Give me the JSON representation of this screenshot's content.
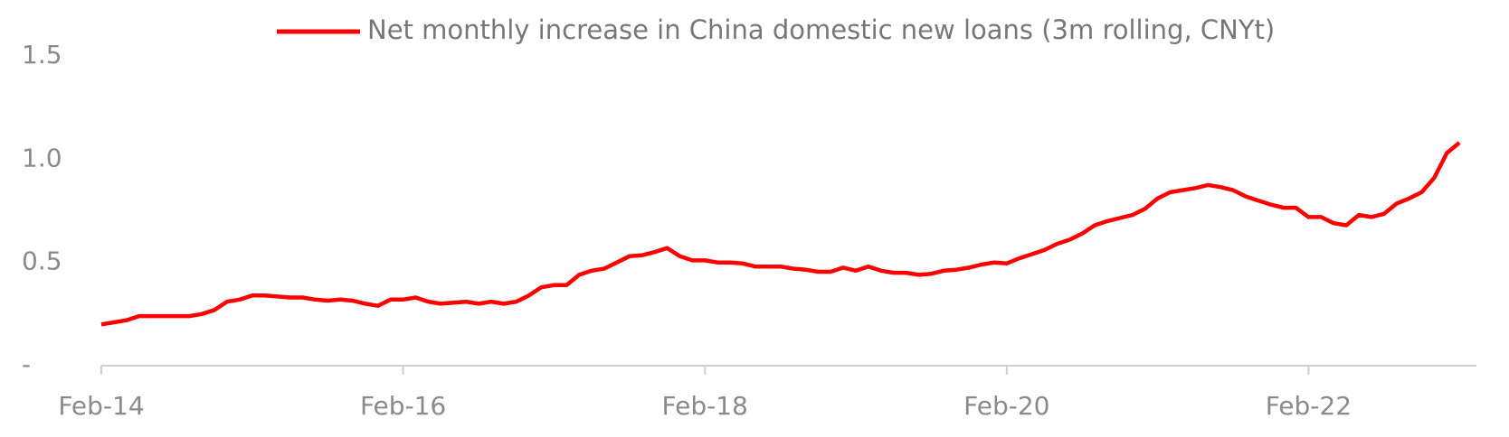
{
  "chart_data": {
    "type": "line",
    "categories": [
      "Feb-14",
      null,
      null,
      null,
      null,
      null,
      null,
      null,
      null,
      null,
      null,
      null,
      null,
      null,
      null,
      null,
      null,
      null,
      null,
      null,
      null,
      null,
      null,
      null,
      "Feb-16",
      null,
      null,
      null,
      null,
      null,
      null,
      null,
      null,
      null,
      null,
      null,
      null,
      null,
      null,
      null,
      null,
      null,
      null,
      null,
      null,
      null,
      null,
      null,
      "Feb-18",
      null,
      null,
      null,
      null,
      null,
      null,
      null,
      null,
      null,
      null,
      null,
      null,
      null,
      null,
      null,
      null,
      null,
      null,
      null,
      null,
      null,
      null,
      null,
      "Feb-20",
      null,
      null,
      null,
      null,
      null,
      null,
      null,
      null,
      null,
      null,
      null,
      null,
      null,
      null,
      null,
      null,
      null,
      null,
      null,
      null,
      null,
      null,
      null,
      "Feb-22",
      null,
      null,
      null,
      null,
      null,
      null,
      null,
      null,
      null,
      null,
      null,
      null
    ],
    "series": [
      {
        "name": "Net monthly increase in China domestic new loans (3m rolling, CNYt)",
        "color": "#ff0000",
        "values": [
          0.2,
          0.21,
          0.22,
          0.24,
          0.24,
          0.24,
          0.24,
          0.24,
          0.25,
          0.27,
          0.31,
          0.32,
          0.34,
          0.34,
          0.335,
          0.33,
          0.33,
          0.32,
          0.315,
          0.32,
          0.315,
          0.3,
          0.29,
          0.32,
          0.32,
          0.33,
          0.31,
          0.3,
          0.305,
          0.31,
          0.3,
          0.31,
          0.3,
          0.31,
          0.34,
          0.38,
          0.39,
          0.39,
          0.44,
          0.46,
          0.47,
          0.5,
          0.53,
          0.535,
          0.55,
          0.57,
          0.53,
          0.51,
          0.51,
          0.5,
          0.5,
          0.495,
          0.48,
          0.48,
          0.48,
          0.47,
          0.465,
          0.455,
          0.455,
          0.475,
          0.46,
          0.48,
          0.46,
          0.45,
          0.45,
          0.44,
          0.445,
          0.46,
          0.465,
          0.475,
          0.49,
          0.5,
          0.495,
          0.52,
          0.54,
          0.56,
          0.59,
          0.61,
          0.64,
          0.68,
          0.7,
          0.715,
          0.73,
          0.76,
          0.81,
          0.84,
          0.85,
          0.86,
          0.875,
          0.865,
          0.85,
          0.82,
          0.8,
          0.78,
          0.765,
          0.765,
          0.72,
          0.72,
          0.69,
          0.68,
          0.73,
          0.72,
          0.735,
          0.785,
          0.81,
          0.84,
          0.91,
          1.03,
          1.08
        ]
      }
    ],
    "ylim": [
      0,
      1.5
    ],
    "yticks": [
      {
        "value": 0,
        "label": "-"
      },
      0.5,
      {
        "value": 1,
        "label": "1.0"
      },
      1.5
    ],
    "grid": false
  }
}
